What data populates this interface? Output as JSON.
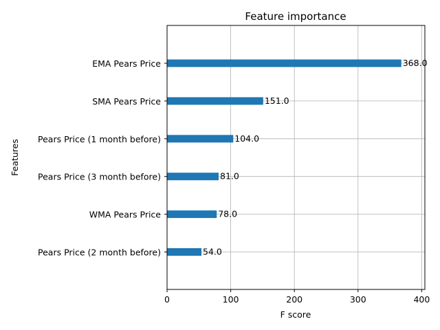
{
  "chart_data": {
    "type": "bar",
    "orientation": "horizontal",
    "title": "Feature importance",
    "xlabel": "F score",
    "ylabel": "Features",
    "categories": [
      "EMA Pears Price",
      "SMA Pears Price",
      "Pears Price (1 month before)",
      "Pears Price (3 month before)",
      "WMA Pears Price",
      "Pears Price (2 month before)"
    ],
    "values": [
      368,
      151,
      104,
      81,
      78,
      54
    ],
    "value_labels": [
      "368.0",
      "151.0",
      "104.0",
      "81.0",
      "78.0",
      "54.0"
    ],
    "xlim": [
      0,
      405
    ],
    "xticks": [
      0,
      100,
      200,
      300,
      400
    ],
    "grid": true,
    "bar_color": "#1f77b4"
  }
}
